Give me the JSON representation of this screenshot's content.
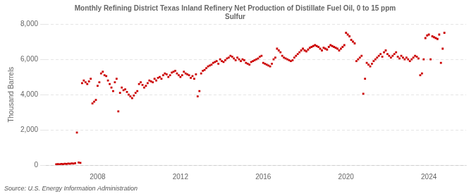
{
  "chart_data": {
    "type": "scatter",
    "title": "Monthly Refining District Texas Inland Refinery Net Production of Distillate Fuel Oil, 0 to 15 ppm\nSulfur",
    "ylabel": "Thousand Barrels",
    "annotations": [
      "Source: U.S. Energy Information Administration"
    ],
    "color": "#cc0000",
    "marker": "square",
    "grid": "y",
    "xlim": [
      2005.5,
      2025.8
    ],
    "xticks": [
      2008,
      2012,
      2016,
      2020,
      2024
    ],
    "ylim": [
      0,
      8000
    ],
    "yticks": [
      0,
      {
        "value": 2000,
        "label": "2,000"
      },
      {
        "value": 4000,
        "label": "4,000"
      },
      {
        "value": 6000,
        "label": "6,000"
      },
      {
        "value": 8000,
        "label": "8,000"
      }
    ],
    "x": [
      2006.0,
      2006.083,
      2006.167,
      2006.25,
      2006.333,
      2006.417,
      2006.5,
      2006.583,
      2006.667,
      2006.75,
      2006.833,
      2006.917,
      2007.0,
      2007.083,
      2007.167,
      2007.25,
      2007.333,
      2007.417,
      2007.5,
      2007.583,
      2007.667,
      2007.75,
      2007.833,
      2007.917,
      2008.0,
      2008.083,
      2008.167,
      2008.25,
      2008.333,
      2008.417,
      2008.5,
      2008.583,
      2008.667,
      2008.75,
      2008.833,
      2008.917,
      2009.0,
      2009.083,
      2009.167,
      2009.25,
      2009.333,
      2009.417,
      2009.5,
      2009.583,
      2009.667,
      2009.75,
      2009.833,
      2009.917,
      2010.0,
      2010.083,
      2010.167,
      2010.25,
      2010.333,
      2010.417,
      2010.5,
      2010.583,
      2010.667,
      2010.75,
      2010.833,
      2010.917,
      2011.0,
      2011.083,
      2011.167,
      2011.25,
      2011.333,
      2011.417,
      2011.5,
      2011.583,
      2011.667,
      2011.75,
      2011.833,
      2011.917,
      2012.0,
      2012.083,
      2012.167,
      2012.25,
      2012.333,
      2012.417,
      2012.5,
      2012.583,
      2012.667,
      2012.75,
      2012.833,
      2012.917,
      2013.0,
      2013.083,
      2013.167,
      2013.25,
      2013.333,
      2013.417,
      2013.5,
      2013.583,
      2013.667,
      2013.75,
      2013.833,
      2013.917,
      2014.0,
      2014.083,
      2014.167,
      2014.25,
      2014.333,
      2014.417,
      2014.5,
      2014.583,
      2014.667,
      2014.75,
      2014.833,
      2014.917,
      2015.0,
      2015.083,
      2015.167,
      2015.25,
      2015.333,
      2015.417,
      2015.5,
      2015.583,
      2015.667,
      2015.75,
      2015.833,
      2015.917,
      2016.0,
      2016.083,
      2016.167,
      2016.25,
      2016.333,
      2016.417,
      2016.5,
      2016.583,
      2016.667,
      2016.75,
      2016.833,
      2016.917,
      2017.0,
      2017.083,
      2017.167,
      2017.25,
      2017.333,
      2017.417,
      2017.5,
      2017.583,
      2017.667,
      2017.75,
      2017.833,
      2017.917,
      2018.0,
      2018.083,
      2018.167,
      2018.25,
      2018.333,
      2018.417,
      2018.5,
      2018.583,
      2018.667,
      2018.75,
      2018.833,
      2018.917,
      2019.0,
      2019.083,
      2019.167,
      2019.25,
      2019.333,
      2019.417,
      2019.5,
      2019.583,
      2019.667,
      2019.75,
      2019.833,
      2019.917,
      2020.0,
      2020.083,
      2020.167,
      2020.25,
      2020.333,
      2020.417,
      2020.5,
      2020.583,
      2020.667,
      2020.75,
      2020.833,
      2020.917,
      2021.0,
      2021.083,
      2021.167,
      2021.25,
      2021.333,
      2021.417,
      2021.5,
      2021.583,
      2021.667,
      2021.75,
      2021.833,
      2021.917,
      2022.0,
      2022.083,
      2022.167,
      2022.25,
      2022.333,
      2022.417,
      2022.5,
      2022.583,
      2022.667,
      2022.75,
      2022.833,
      2022.917,
      2023.0,
      2023.083,
      2023.167,
      2023.25,
      2023.333,
      2023.417,
      2023.5,
      2023.583,
      2023.667,
      2023.75,
      2023.833,
      2023.917,
      2024.0,
      2024.083,
      2024.167,
      2024.25,
      2024.333,
      2024.417,
      2024.5,
      2024.583,
      2024.667,
      2024.75
    ],
    "values": [
      50,
      60,
      55,
      70,
      65,
      80,
      75,
      90,
      85,
      100,
      95,
      110,
      1850,
      150,
      130,
      4650,
      4800,
      4700,
      4600,
      4750,
      4900,
      3500,
      3600,
      3700,
      4500,
      4700,
      5200,
      5300,
      5100,
      5050,
      4800,
      4600,
      4400,
      4200,
      4700,
      4900,
      3050,
      4100,
      4400,
      4250,
      4300,
      4150,
      4000,
      3900,
      3800,
      3950,
      4100,
      4200,
      4600,
      4700,
      4550,
      4400,
      4500,
      4650,
      4800,
      4750,
      4700,
      4900,
      4800,
      4950,
      5000,
      4900,
      5100,
      5200,
      5150,
      5000,
      5100,
      5250,
      5300,
      5350,
      5200,
      5100,
      5000,
      5100,
      5300,
      5200,
      5150,
      5100,
      4950,
      5050,
      4900,
      5150,
      3900,
      4200,
      5200,
      5350,
      5400,
      5500,
      5600,
      5650,
      5700,
      5800,
      5850,
      5900,
      5750,
      6000,
      5900,
      5850,
      5950,
      6050,
      6100,
      6200,
      6150,
      6050,
      5950,
      6100,
      6000,
      5900,
      6000,
      5950,
      5800,
      5750,
      5700,
      5850,
      5900,
      5950,
      6000,
      6050,
      6150,
      6200,
      5800,
      5750,
      5700,
      5650,
      5600,
      5750,
      6000,
      6100,
      6600,
      6500,
      6400,
      6200,
      6100,
      6050,
      6000,
      5950,
      5900,
      5950,
      6100,
      6200,
      6300,
      6400,
      6500,
      6600,
      6500,
      6450,
      6550,
      6650,
      6700,
      6750,
      6800,
      6750,
      6700,
      6600,
      6500,
      6650,
      6600,
      6550,
      6700,
      6800,
      6750,
      6700,
      6650,
      6600,
      6500,
      6600,
      6700,
      6800,
      7500,
      7400,
      7300,
      7100,
      7000,
      6900,
      5900,
      6000,
      6100,
      6200,
      4050,
      4900,
      5800,
      5700,
      5600,
      5750,
      5900,
      6000,
      6100,
      6200,
      6300,
      6150,
      6400,
      6500,
      6300,
      6200,
      6100,
      6200,
      6300,
      6400,
      6150,
      6050,
      6200,
      6100,
      6000,
      6100,
      6000,
      5900,
      6000,
      6100,
      6200,
      6150,
      6050,
      5100,
      5200,
      6000,
      7200,
      7350,
      7400,
      6000,
      7300,
      7250,
      7200,
      7150,
      7400,
      5800,
      6600,
      7500
    ]
  }
}
